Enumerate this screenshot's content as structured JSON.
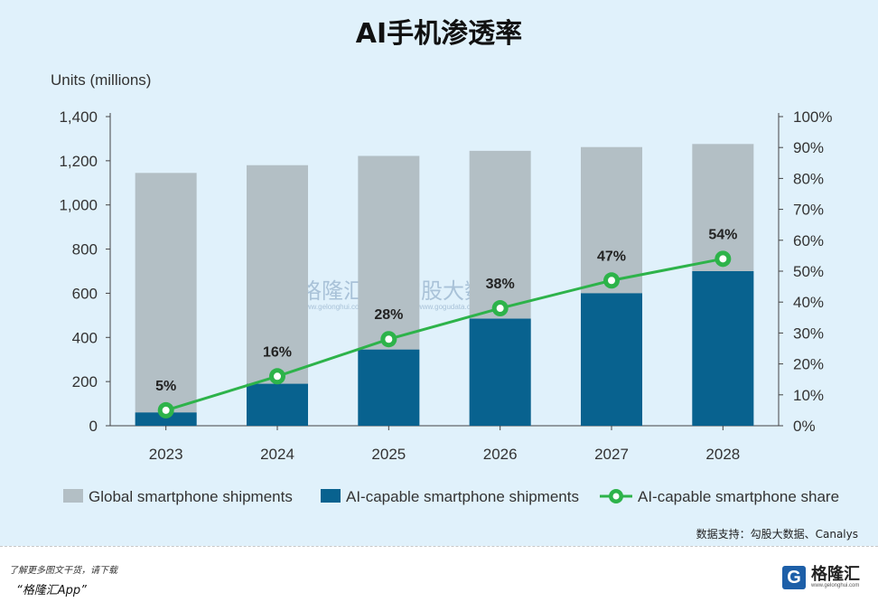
{
  "title": "AI手机渗透率",
  "chart_data": {
    "type": "bar",
    "categories": [
      "2023",
      "2024",
      "2025",
      "2026",
      "2027",
      "2028"
    ],
    "series": [
      {
        "name": "Global smartphone shipments",
        "type": "bar",
        "axis": "left",
        "color": "#b3bfc5",
        "values": [
          1145,
          1180,
          1222,
          1245,
          1262,
          1276
        ]
      },
      {
        "name": "AI-capable smartphone shipments",
        "type": "bar",
        "axis": "left",
        "color": "#08628f",
        "values": [
          60,
          190,
          345,
          485,
          600,
          700
        ]
      },
      {
        "name": "AI-capable smartphone share",
        "type": "line",
        "axis": "right",
        "color": "#2db34a",
        "values": [
          5,
          16,
          28,
          38,
          47,
          54
        ],
        "labels": [
          "5%",
          "16%",
          "28%",
          "38%",
          "47%",
          "54%"
        ]
      }
    ],
    "ylabel": "Units (millions)",
    "ylim": [
      0,
      1400
    ],
    "yticks": [
      "0",
      "200",
      "400",
      "600",
      "800",
      "1,000",
      "1,200",
      "1,400"
    ],
    "y2lim": [
      0,
      100
    ],
    "y2ticks": [
      "0%",
      "10%",
      "20%",
      "30%",
      "40%",
      "50%",
      "60%",
      "70%",
      "80%",
      "90%",
      "100%"
    ],
    "legend_position": "bottom",
    "grid": false
  },
  "watermark": {
    "mark": "G",
    "brand": "格隆汇",
    "brand_url": "www.gelonghui.com",
    "partner": "勾股大数据",
    "partner_url": "www.gogudata.com"
  },
  "source": "数据支持：勾股大数据、Canalys",
  "footer": {
    "note": "了解更多图文干货，请下载",
    "app": "“格隆汇App”",
    "logo_mark": "G",
    "logo_text": "格隆汇",
    "logo_url": "www.gelonghui.com"
  },
  "colors": {
    "background": "#e0f1fb",
    "accent": "#08628f",
    "line": "#2db34a"
  }
}
